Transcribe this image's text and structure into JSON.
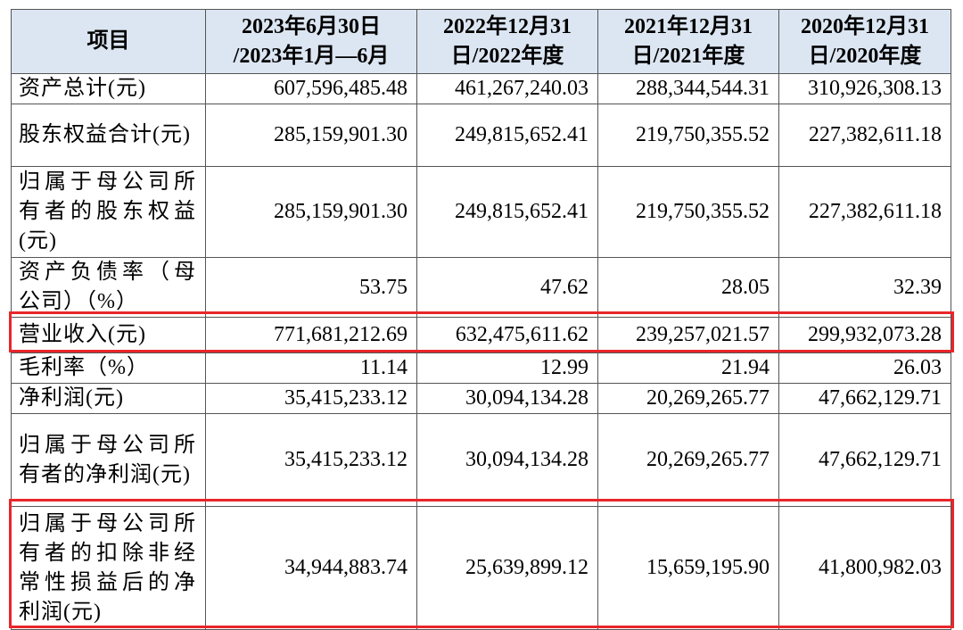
{
  "table": {
    "header": [
      "项目",
      "2023年6月30日\n/2023年1月—6月",
      "2022年12月31\n日/2022年度",
      "2021年12月31\n日/2021年度",
      "2020年12月31\n日/2020年度"
    ],
    "rows": [
      [
        "资产总计(元)",
        "607,596,485.48",
        "461,267,240.03",
        "288,344,544.31",
        "310,926,308.13"
      ],
      [
        "股东权益合计(元)",
        "285,159,901.30",
        "249,815,652.41",
        "219,750,355.52",
        "227,382,611.18"
      ],
      [
        "归属于母公司所有者的股东权益(元)",
        "285,159,901.30",
        "249,815,652.41",
        "219,750,355.52",
        "227,382,611.18"
      ],
      [
        "资产负债率（母公司）（%）",
        "53.75",
        "47.62",
        "28.05",
        "32.39"
      ],
      [
        "营业收入(元)",
        "771,681,212.69",
        "632,475,611.62",
        "239,257,021.57",
        "299,932,073.28"
      ],
      [
        "毛利率（%）",
        "11.14",
        "12.99",
        "21.94",
        "26.03"
      ],
      [
        "净利润(元)",
        "35,415,233.12",
        "30,094,134.28",
        "20,269,265.77",
        "47,662,129.71"
      ],
      [
        "归属于母公司所有者的净利润(元)",
        "35,415,233.12",
        "30,094,134.28",
        "20,269,265.77",
        "47,662,129.71"
      ],
      [
        "归属于母公司所有者的扣除非经常性损益后的净利润(元)",
        "34,944,883.74",
        "25,639,899.12",
        "15,659,195.90",
        "41,800,982.03"
      ]
    ]
  }
}
